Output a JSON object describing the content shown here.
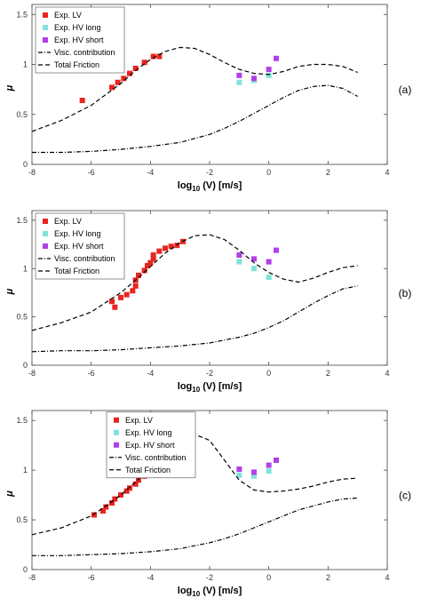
{
  "chart_data": [
    {
      "type": "scatter",
      "panel_label": "(a)",
      "xlabel_base": "log",
      "xlabel_sub": "10",
      "xlabel_rest": " (V) [m/s]",
      "ylabel": "μ",
      "xlim": [
        -8,
        4
      ],
      "ylim": [
        0,
        1.6
      ],
      "xticks": [
        "-8",
        "-6",
        "-4",
        "-2",
        "0",
        "2",
        "4"
      ],
      "yticks": [
        "0",
        "0.5",
        "1",
        "1.5"
      ],
      "grid": false,
      "legend_position": "top-left",
      "legend": [
        "Exp. LV",
        "Exp. HV long",
        "Exp. HV short",
        "Visc. contribution",
        "Total Friction"
      ],
      "series": [
        {
          "name": "Exp. LV",
          "kind": "marker",
          "color": "#e8251f",
          "x": [
            -6.3,
            -5.3,
            -5.1,
            -4.9,
            -4.7,
            -4.5,
            -4.2,
            -3.9,
            -3.7
          ],
          "y": [
            0.64,
            0.77,
            0.82,
            0.86,
            0.91,
            0.96,
            1.02,
            1.08,
            1.08
          ]
        },
        {
          "name": "Exp. HV long",
          "kind": "marker",
          "color": "#7fe3db",
          "x": [
            -1.0,
            -0.5,
            0.0
          ],
          "y": [
            0.82,
            0.84,
            0.89
          ]
        },
        {
          "name": "Exp. HV short",
          "kind": "marker",
          "color": "#b040e8",
          "x": [
            -1.0,
            -0.5,
            0.0,
            0.25
          ],
          "y": [
            0.89,
            0.86,
            0.95,
            1.06
          ]
        },
        {
          "name": "Visc. contribution",
          "kind": "line",
          "dash": "dashdot",
          "x": [
            -8,
            -7,
            -6,
            -5,
            -4,
            -3,
            -2,
            -1.5,
            -1,
            -0.5,
            0,
            0.5,
            1,
            1.5,
            2,
            2.5,
            3
          ],
          "y": [
            0.12,
            0.12,
            0.13,
            0.15,
            0.18,
            0.22,
            0.3,
            0.36,
            0.43,
            0.51,
            0.59,
            0.67,
            0.74,
            0.78,
            0.79,
            0.76,
            0.68
          ]
        },
        {
          "name": "Total Friction",
          "kind": "line",
          "dash": "dashed",
          "x": [
            -8,
            -7,
            -6,
            -5.5,
            -5,
            -4.5,
            -4,
            -3.5,
            -3,
            -2.5,
            -2,
            -1.5,
            -1,
            -0.5,
            0,
            0.5,
            1,
            1.5,
            2,
            2.5,
            3
          ],
          "y": [
            0.33,
            0.44,
            0.59,
            0.7,
            0.81,
            0.94,
            1.05,
            1.13,
            1.17,
            1.16,
            1.1,
            1.02,
            0.95,
            0.91,
            0.9,
            0.93,
            0.98,
            1.0,
            1.0,
            0.98,
            0.92
          ]
        }
      ]
    },
    {
      "type": "scatter",
      "panel_label": "(b)",
      "xlabel_base": "log",
      "xlabel_sub": "10",
      "xlabel_rest": " (V) [m/s]",
      "ylabel": "μ",
      "xlim": [
        -8,
        4
      ],
      "ylim": [
        0,
        1.6
      ],
      "xticks": [
        "-8",
        "-6",
        "-4",
        "-2",
        "0",
        "2",
        "4"
      ],
      "yticks": [
        "0",
        "0.5",
        "1",
        "1.5"
      ],
      "grid": false,
      "legend_position": "top-left",
      "legend": [
        "Exp. LV",
        "Exp. HV long",
        "Exp. HV short",
        "Visc. contribution",
        "Total Friction"
      ],
      "series": [
        {
          "name": "Exp. LV",
          "kind": "marker",
          "color": "#e8251f",
          "x": [
            -5.3,
            -5.2,
            -5.0,
            -4.8,
            -4.6,
            -4.5,
            -4.5,
            -4.4,
            -4.2,
            -4.1,
            -4.0,
            -3.9,
            -3.9,
            -3.7,
            -3.5,
            -3.3,
            -3.1,
            -2.9
          ],
          "y": [
            0.66,
            0.6,
            0.7,
            0.73,
            0.77,
            0.82,
            0.88,
            0.93,
            0.98,
            1.03,
            1.06,
            1.1,
            1.14,
            1.18,
            1.21,
            1.23,
            1.24,
            1.28
          ]
        },
        {
          "name": "Exp. HV long",
          "kind": "marker",
          "color": "#7fe3db",
          "x": [
            -1.0,
            -0.5,
            0.0
          ],
          "y": [
            1.07,
            1.0,
            0.91
          ]
        },
        {
          "name": "Exp. HV short",
          "kind": "marker",
          "color": "#b040e8",
          "x": [
            -1.0,
            -0.5,
            0.0,
            0.25
          ],
          "y": [
            1.14,
            1.1,
            1.07,
            1.19
          ]
        },
        {
          "name": "Visc. contribution",
          "kind": "line",
          "dash": "dashdot",
          "x": [
            -8,
            -7,
            -6,
            -5,
            -4,
            -3,
            -2,
            -1.5,
            -1,
            -0.5,
            0,
            0.5,
            1,
            1.5,
            2,
            2.5,
            3
          ],
          "y": [
            0.14,
            0.15,
            0.15,
            0.16,
            0.18,
            0.2,
            0.23,
            0.26,
            0.29,
            0.33,
            0.39,
            0.46,
            0.55,
            0.64,
            0.72,
            0.79,
            0.82
          ]
        },
        {
          "name": "Total Friction",
          "kind": "line",
          "dash": "dashed",
          "x": [
            -8,
            -7,
            -6,
            -5.5,
            -5,
            -4.5,
            -4,
            -3.5,
            -3,
            -2.5,
            -2,
            -1.5,
            -1,
            -0.5,
            0,
            0.5,
            1,
            1.5,
            2,
            2.5,
            3
          ],
          "y": [
            0.36,
            0.44,
            0.55,
            0.65,
            0.75,
            0.88,
            1.02,
            1.16,
            1.27,
            1.34,
            1.35,
            1.3,
            1.19,
            1.06,
            0.96,
            0.89,
            0.86,
            0.9,
            0.96,
            1.01,
            1.03
          ]
        }
      ]
    },
    {
      "type": "scatter",
      "panel_label": "(c)",
      "xlabel_base": "log",
      "xlabel_sub": "10",
      "xlabel_rest": " (V) [m/s]",
      "ylabel": "μ",
      "xlim": [
        -8,
        4
      ],
      "ylim": [
        0,
        1.6
      ],
      "xticks": [
        "-8",
        "-6",
        "-4",
        "-2",
        "0",
        "2",
        "4"
      ],
      "yticks": [
        "0",
        "0.5",
        "1",
        "1.5"
      ],
      "grid": false,
      "legend_position": "top-right",
      "legend": [
        "Exp. LV",
        "Exp. HV long",
        "Exp. HV short",
        "Visc. contribution",
        "Total Friction"
      ],
      "series": [
        {
          "name": "Exp. LV",
          "kind": "marker",
          "color": "#e8251f",
          "x": [
            -5.9,
            -5.6,
            -5.5,
            -5.3,
            -5.2,
            -5.0,
            -4.8,
            -4.7,
            -4.5,
            -4.4,
            -4.2,
            -4.1,
            -3.9,
            -3.8,
            -3.6,
            -3.4,
            -3.2,
            -3.0,
            -2.6
          ],
          "y": [
            0.55,
            0.59,
            0.63,
            0.67,
            0.71,
            0.75,
            0.79,
            0.82,
            0.86,
            0.9,
            0.94,
            0.99,
            1.04,
            1.08,
            1.13,
            1.19,
            1.25,
            1.3,
            1.35
          ]
        },
        {
          "name": "Exp. HV long",
          "kind": "marker",
          "color": "#7fe3db",
          "x": [
            -1.0,
            -0.5,
            0.0
          ],
          "y": [
            0.95,
            0.94,
            0.99
          ]
        },
        {
          "name": "Exp. HV short",
          "kind": "marker",
          "color": "#b040e8",
          "x": [
            -1.0,
            -0.5,
            0.0,
            0.25
          ],
          "y": [
            1.01,
            0.98,
            1.05,
            1.1
          ]
        },
        {
          "name": "Visc. contribution",
          "kind": "line",
          "dash": "dashdot",
          "x": [
            -8,
            -7,
            -6,
            -5,
            -4,
            -3,
            -2,
            -1.5,
            -1,
            -0.5,
            0,
            0.5,
            1,
            1.5,
            2,
            2.5,
            3
          ],
          "y": [
            0.14,
            0.14,
            0.15,
            0.16,
            0.18,
            0.21,
            0.27,
            0.31,
            0.36,
            0.42,
            0.48,
            0.54,
            0.6,
            0.64,
            0.68,
            0.71,
            0.72
          ]
        },
        {
          "name": "Total Friction",
          "kind": "line",
          "dash": "dashed",
          "x": [
            -8,
            -7,
            -6,
            -5.5,
            -5,
            -4.5,
            -4,
            -3.5,
            -3,
            -2.5,
            -2,
            -1.5,
            -1,
            -0.5,
            0,
            0.5,
            1,
            1.5,
            2,
            2.5,
            3
          ],
          "y": [
            0.35,
            0.42,
            0.54,
            0.64,
            0.75,
            0.88,
            1.03,
            1.18,
            1.3,
            1.36,
            1.3,
            1.1,
            0.9,
            0.8,
            0.78,
            0.79,
            0.81,
            0.84,
            0.88,
            0.91,
            0.92
          ]
        }
      ]
    }
  ]
}
